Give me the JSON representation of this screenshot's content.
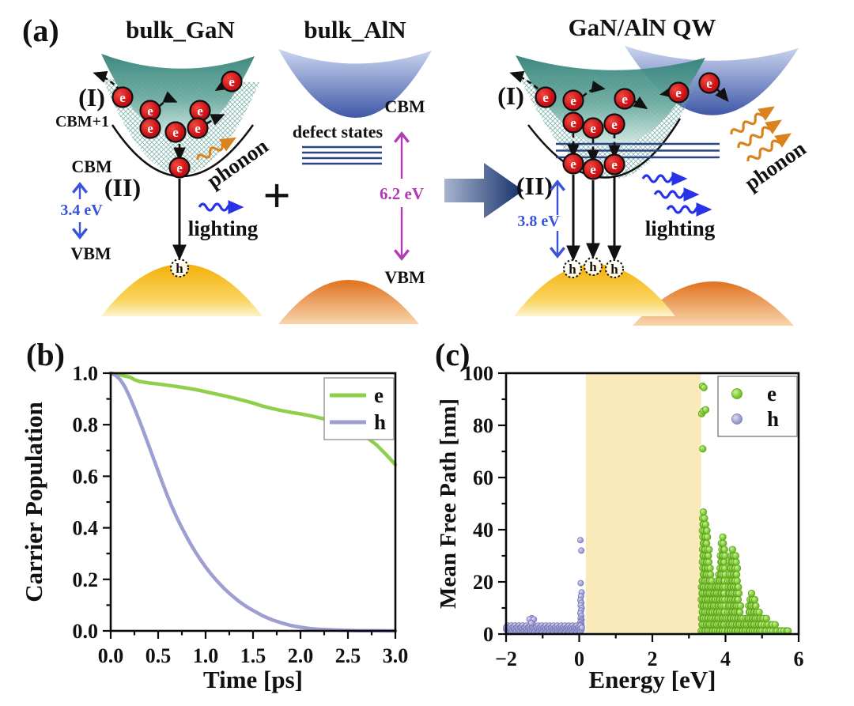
{
  "panel_a": {
    "label": "(a)",
    "electron": "e",
    "hole": "h",
    "left": {
      "title": "bulk_GaN",
      "region_I": "(I)",
      "cbm_plus_1": "CBM+1",
      "cbm": "CBM",
      "region_II": "(II)",
      "gap": "3.4 eV",
      "vbm": "VBM",
      "phonon": "phonon",
      "lighting": "lighting"
    },
    "middle": {
      "title": "bulk_AlN",
      "cbm": "CBM",
      "defect_states": "defect states",
      "gap": "6.2 eV",
      "vbm": "VBM"
    },
    "plus": "+",
    "right": {
      "title": "GaN/AlN QW",
      "region_I": "(I)",
      "region_II": "(II)",
      "gap": "3.8 eV",
      "lighting": "lighting",
      "phonon": "phonon"
    },
    "colors": {
      "gan_conduction_band": "#2e7f75",
      "aln_conduction_band": "#3f58a7",
      "gan_valence_band": "#f4b008",
      "aln_valence_band": "#e0711d",
      "electron": "#d01317",
      "phonon_arrow": "#d9821e",
      "lighting_arrow": "#2833e8",
      "gap_label_blue": "#3a53d8",
      "gap_label_purple": "#b23ab2",
      "defect_line": "#2a4585"
    }
  },
  "chart_data": [
    {
      "type": "line",
      "panel_label": "(b)",
      "xlabel": "Time [ps]",
      "ylabel": "Carrier Population",
      "xlim": [
        0,
        3
      ],
      "ylim": [
        0,
        1
      ],
      "grid": false,
      "legend_position": "top-right",
      "xticks": [
        {
          "v": 0,
          "l": "0.0"
        },
        {
          "v": 0.5,
          "l": "0.5"
        },
        {
          "v": 1,
          "l": "1.0"
        },
        {
          "v": 1.5,
          "l": "1.5"
        },
        {
          "v": 2,
          "l": "2.0"
        },
        {
          "v": 2.5,
          "l": "2.5"
        },
        {
          "v": 3,
          "l": "3.0"
        }
      ],
      "yticks": [
        {
          "v": 0,
          "l": "0.0"
        },
        {
          "v": 0.2,
          "l": "0.2"
        },
        {
          "v": 0.4,
          "l": "0.4"
        },
        {
          "v": 0.6,
          "l": "0.6"
        },
        {
          "v": 0.8,
          "l": "0.8"
        },
        {
          "v": 1,
          "l": "1.0"
        }
      ],
      "xminor": [
        0.25,
        0.75,
        1.25,
        1.75,
        2.25,
        2.75
      ],
      "yminor": [
        0.1,
        0.3,
        0.5,
        0.7,
        0.9
      ],
      "series": [
        {
          "name": "e",
          "color": "#8ed04b",
          "points": [
            [
              0,
              1.0
            ],
            [
              0.1,
              0.993
            ],
            [
              0.2,
              0.985
            ],
            [
              0.25,
              0.975
            ],
            [
              0.3,
              0.968
            ],
            [
              0.4,
              0.962
            ],
            [
              0.5,
              0.958
            ],
            [
              0.6,
              0.953
            ],
            [
              0.7,
              0.948
            ],
            [
              0.8,
              0.942
            ],
            [
              0.9,
              0.936
            ],
            [
              1.0,
              0.928
            ],
            [
              1.1,
              0.92
            ],
            [
              1.2,
              0.912
            ],
            [
              1.3,
              0.903
            ],
            [
              1.4,
              0.894
            ],
            [
              1.5,
              0.884
            ],
            [
              1.6,
              0.872
            ],
            [
              1.7,
              0.863
            ],
            [
              1.8,
              0.855
            ],
            [
              1.9,
              0.848
            ],
            [
              2.0,
              0.842
            ],
            [
              2.1,
              0.835
            ],
            [
              2.2,
              0.827
            ],
            [
              2.3,
              0.818
            ],
            [
              2.4,
              0.806
            ],
            [
              2.5,
              0.792
            ],
            [
              2.6,
              0.773
            ],
            [
              2.7,
              0.75
            ],
            [
              2.8,
              0.722
            ],
            [
              2.9,
              0.685
            ],
            [
              3.0,
              0.645
            ]
          ]
        },
        {
          "name": "h",
          "color": "#9d9ed2",
          "points": [
            [
              0,
              1.0
            ],
            [
              0.05,
              0.992
            ],
            [
              0.1,
              0.975
            ],
            [
              0.15,
              0.947
            ],
            [
              0.2,
              0.908
            ],
            [
              0.25,
              0.864
            ],
            [
              0.3,
              0.818
            ],
            [
              0.35,
              0.77
            ],
            [
              0.4,
              0.72
            ],
            [
              0.45,
              0.67
            ],
            [
              0.5,
              0.62
            ],
            [
              0.55,
              0.57
            ],
            [
              0.6,
              0.522
            ],
            [
              0.65,
              0.478
            ],
            [
              0.7,
              0.437
            ],
            [
              0.75,
              0.4
            ],
            [
              0.8,
              0.365
            ],
            [
              0.85,
              0.332
            ],
            [
              0.9,
              0.302
            ],
            [
              0.95,
              0.274
            ],
            [
              1.0,
              0.248
            ],
            [
              1.05,
              0.224
            ],
            [
              1.1,
              0.202
            ],
            [
              1.15,
              0.182
            ],
            [
              1.2,
              0.163
            ],
            [
              1.25,
              0.146
            ],
            [
              1.3,
              0.13
            ],
            [
              1.35,
              0.115
            ],
            [
              1.4,
              0.102
            ],
            [
              1.45,
              0.09
            ],
            [
              1.5,
              0.079
            ],
            [
              1.6,
              0.059
            ],
            [
              1.7,
              0.043
            ],
            [
              1.8,
              0.031
            ],
            [
              1.9,
              0.021
            ],
            [
              2.0,
              0.014
            ],
            [
              2.1,
              0.009
            ],
            [
              2.2,
              0.006
            ],
            [
              2.4,
              0.003
            ],
            [
              2.6,
              0.001
            ],
            [
              2.8,
              0.0005
            ],
            [
              3.0,
              0
            ]
          ]
        }
      ]
    },
    {
      "type": "scatter",
      "panel_label": "(c)",
      "xlabel": "Energy [eV]",
      "ylabel": "Mean Free Path [nm]",
      "xlim": [
        -2,
        6
      ],
      "ylim": [
        0,
        100
      ],
      "grid": false,
      "legend_position": "top-right",
      "xticks": [
        {
          "v": -2,
          "l": "−2"
        },
        {
          "v": 0,
          "l": "0"
        },
        {
          "v": 2,
          "l": "2"
        },
        {
          "v": 4,
          "l": "4"
        },
        {
          "v": 6,
          "l": "6"
        }
      ],
      "yticks": [
        {
          "v": 0,
          "l": "0"
        },
        {
          "v": 20,
          "l": "20"
        },
        {
          "v": 40,
          "l": "40"
        },
        {
          "v": 60,
          "l": "60"
        },
        {
          "v": 80,
          "l": "80"
        },
        {
          "v": 100,
          "l": "100"
        }
      ],
      "xminor": [
        -1,
        1,
        3,
        5
      ],
      "yminor": [
        10,
        30,
        50,
        70,
        90
      ],
      "band": {
        "x0": 0.18,
        "x1": 3.33,
        "color": "#faeab9"
      },
      "series": [
        {
          "name": "e",
          "color": "#7ccb35",
          "stroke": "#5ba214",
          "grad": "gradE",
          "r": 4.2,
          "outliers": [
            [
              3.37,
              95
            ],
            [
              3.41,
              94.5
            ],
            [
              3.35,
              84.5
            ],
            [
              3.4,
              85.5
            ],
            [
              3.46,
              86
            ],
            [
              3.38,
              71
            ]
          ],
          "columns": [
            [
              3.35,
              22
            ],
            [
              3.38,
              48
            ],
            [
              3.42,
              46
            ],
            [
              3.46,
              43
            ],
            [
              3.5,
              41
            ],
            [
              3.54,
              34
            ],
            [
              3.58,
              26
            ],
            [
              3.62,
              21
            ],
            [
              3.66,
              18
            ],
            [
              3.7,
              18
            ],
            [
              3.74,
              20
            ],
            [
              3.78,
              22
            ],
            [
              3.82,
              25
            ],
            [
              3.86,
              30
            ],
            [
              3.9,
              37
            ],
            [
              3.94,
              38
            ],
            [
              3.98,
              33
            ],
            [
              4.04,
              6
            ],
            [
              4.08,
              22
            ],
            [
              4.12,
              28
            ],
            [
              4.16,
              31
            ],
            [
              4.2,
              33
            ],
            [
              4.24,
              32
            ],
            [
              4.28,
              30
            ],
            [
              4.32,
              27
            ],
            [
              4.36,
              20
            ],
            [
              4.4,
              13
            ],
            [
              4.44,
              8
            ],
            [
              4.48,
              6
            ],
            [
              4.52,
              5
            ],
            [
              4.56,
              6
            ],
            [
              4.6,
              8
            ],
            [
              4.64,
              11
            ],
            [
              4.68,
              14
            ],
            [
              4.72,
              16
            ],
            [
              4.76,
              15.5
            ],
            [
              4.8,
              14
            ],
            [
              4.84,
              12
            ],
            [
              4.88,
              10
            ],
            [
              4.92,
              8.5
            ],
            [
              4.96,
              7.5
            ],
            [
              5.0,
              7
            ],
            [
              5.06,
              6.5
            ],
            [
              5.12,
              6
            ],
            [
              5.18,
              5.5
            ],
            [
              5.24,
              5
            ],
            [
              5.3,
              4.5
            ],
            [
              5.36,
              4
            ],
            [
              5.42,
              3.5
            ],
            [
              5.48,
              3
            ],
            [
              5.54,
              2.5
            ],
            [
              5.6,
              2.2
            ],
            [
              5.66,
              1.8
            ],
            [
              5.72,
              1.5
            ]
          ]
        },
        {
          "name": "h",
          "color": "#9fa0d4",
          "stroke": "#7678b8",
          "grad": "gradH",
          "r": 3.6,
          "outliers": [
            [
              -1.3,
              6.1
            ],
            [
              -1.36,
              5.7
            ],
            [
              -1.24,
              5.6
            ],
            [
              -1.31,
              4.2
            ]
          ],
          "spike": {
            "x": 0.05,
            "ys": [
              36,
              32,
              19.5,
              16,
              14.5,
              13,
              12,
              11,
              10,
              9,
              8,
              7,
              6,
              5.5,
              5,
              4.5,
              4,
              3.5,
              3,
              2.5,
              2
            ]
          },
          "baseline": {
            "x0": -2.0,
            "x1": 0.07,
            "step": 0.035,
            "y_levels": [
              1.4,
              2.1,
              2.8
            ]
          }
        }
      ]
    }
  ]
}
